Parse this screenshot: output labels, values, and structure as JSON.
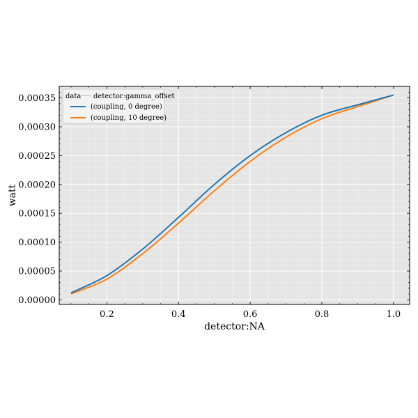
{
  "chart_data": {
    "type": "line",
    "xlabel": "detector:NA",
    "ylabel": "watt",
    "xlim": [
      0.067,
      1.045
    ],
    "ylim": [
      -8e-06,
      0.00037
    ],
    "xticks": [
      0.2,
      0.4,
      0.6,
      0.8,
      1.0
    ],
    "xtick_labels": [
      "0.2",
      "0.4",
      "0.6",
      "0.8",
      "1.0"
    ],
    "yticks": [
      0.0,
      5e-05,
      0.0001,
      0.00015,
      0.0002,
      0.00025,
      0.0003,
      0.00035
    ],
    "ytick_labels": [
      "0.00000",
      "0.00005",
      "0.00010",
      "0.00015",
      "0.00020",
      "0.00025",
      "0.00030",
      "0.00035"
    ],
    "grid": true,
    "legend_position": "top-left",
    "legend_title_left": "data",
    "legend_title_right": "detector:gamma_offset",
    "x": [
      0.1,
      0.2,
      0.3,
      0.4,
      0.5,
      0.6,
      0.7,
      0.8,
      0.9,
      1.0
    ],
    "series": [
      {
        "name": "(coupling, 0 degree)",
        "color": "#1f77b4",
        "values": [
          1.2e-05,
          4.2e-05,
          8.8e-05,
          0.000143,
          0.0002,
          0.00025,
          0.00029,
          0.00032,
          0.000338,
          0.000355
        ]
      },
      {
        "name": "(coupling, 10 degree)",
        "color": "#ff7f0e",
        "values": [
          1e-05,
          3.6e-05,
          8e-05,
          0.000133,
          0.000189,
          0.00024,
          0.000282,
          0.000314,
          0.000335,
          0.000355
        ]
      }
    ]
  }
}
